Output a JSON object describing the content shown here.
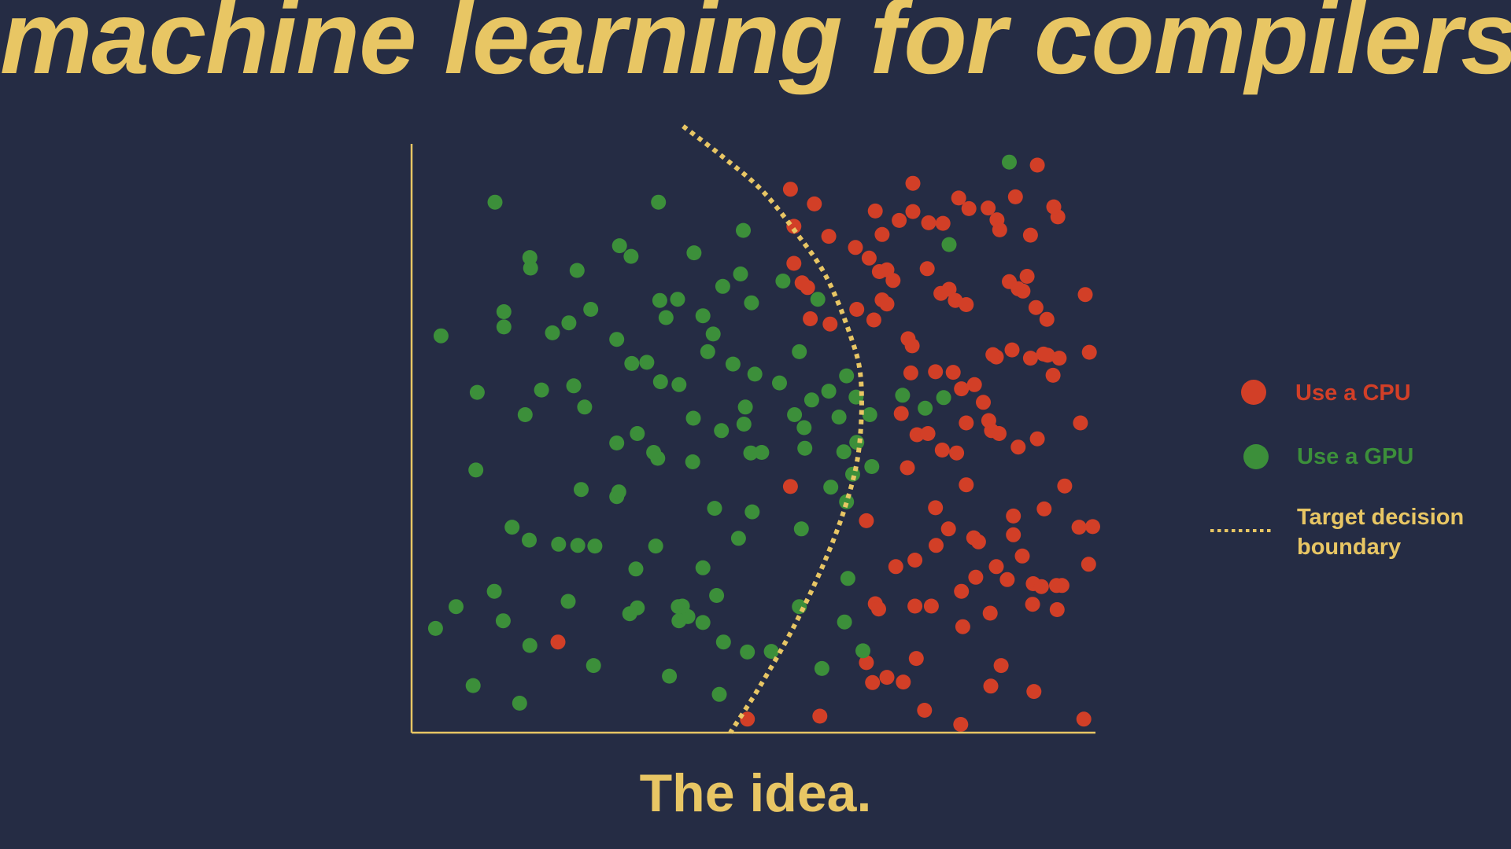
{
  "slide": {
    "title": "machine learning for compilers",
    "caption": "The idea."
  },
  "colors": {
    "background": "#252c44",
    "accent": "#e8c664",
    "cpu": "#d23f27",
    "gpu": "#3c8f3a",
    "axis": "#e8c664"
  },
  "chart_data": {
    "type": "scatter",
    "title": "",
    "xlabel": "",
    "ylabel": "",
    "xlim": [
      0,
      100
    ],
    "ylim": [
      0,
      100
    ],
    "grid": false,
    "legend_placement": "right",
    "series": [
      {
        "name": "Use a CPU",
        "color": "#d23f27",
        "points": [
          [
            55.4,
            92.3
          ],
          [
            58.9,
            89.8
          ],
          [
            73.3,
            93.3
          ],
          [
            91.5,
            96.4
          ],
          [
            88.3,
            91.0
          ],
          [
            94.5,
            87.6
          ],
          [
            55.9,
            86.0
          ],
          [
            61.0,
            84.3
          ],
          [
            64.9,
            82.4
          ],
          [
            67.8,
            88.6
          ],
          [
            68.8,
            84.6
          ],
          [
            71.3,
            87.0
          ],
          [
            73.3,
            88.5
          ],
          [
            75.6,
            86.6
          ],
          [
            77.7,
            86.5
          ],
          [
            80.0,
            90.8
          ],
          [
            81.5,
            89.0
          ],
          [
            84.3,
            89.1
          ],
          [
            85.6,
            87.1
          ],
          [
            86.0,
            85.4
          ],
          [
            90.5,
            84.5
          ],
          [
            55.9,
            79.7
          ],
          [
            57.1,
            76.4
          ],
          [
            57.9,
            75.6
          ],
          [
            66.9,
            80.6
          ],
          [
            68.4,
            78.3
          ],
          [
            69.5,
            78.6
          ],
          [
            70.4,
            76.8
          ],
          [
            75.4,
            78.8
          ],
          [
            77.4,
            74.6
          ],
          [
            78.6,
            75.3
          ],
          [
            79.5,
            73.4
          ],
          [
            81.1,
            72.7
          ],
          [
            87.4,
            76.6
          ],
          [
            88.7,
            75.4
          ],
          [
            89.4,
            75.0
          ],
          [
            90.0,
            77.5
          ],
          [
            91.3,
            72.2
          ],
          [
            92.9,
            70.2
          ],
          [
            98.5,
            74.4
          ],
          [
            93.9,
            89.3
          ],
          [
            58.3,
            70.3
          ],
          [
            61.2,
            69.4
          ],
          [
            65.1,
            71.9
          ],
          [
            67.6,
            70.1
          ],
          [
            68.8,
            73.5
          ],
          [
            69.5,
            72.8
          ],
          [
            72.6,
            66.9
          ],
          [
            73.2,
            65.7
          ],
          [
            73.0,
            61.1
          ],
          [
            76.6,
            61.3
          ],
          [
            79.2,
            61.2
          ],
          [
            80.4,
            58.4
          ],
          [
            82.3,
            59.1
          ],
          [
            85.5,
            63.8
          ],
          [
            85.0,
            64.2
          ],
          [
            87.8,
            65.0
          ],
          [
            90.5,
            63.6
          ],
          [
            92.4,
            64.3
          ],
          [
            93.0,
            64.1
          ],
          [
            93.8,
            60.7
          ],
          [
            94.7,
            63.6
          ],
          [
            99.1,
            64.6
          ],
          [
            83.6,
            56.1
          ],
          [
            84.4,
            53.0
          ],
          [
            84.8,
            51.3
          ],
          [
            71.6,
            54.2
          ],
          [
            73.9,
            50.6
          ],
          [
            75.5,
            50.8
          ],
          [
            77.6,
            48.0
          ],
          [
            79.7,
            47.5
          ],
          [
            81.1,
            52.6
          ],
          [
            85.9,
            50.8
          ],
          [
            88.7,
            48.5
          ],
          [
            91.5,
            49.9
          ],
          [
            97.8,
            52.6
          ],
          [
            72.5,
            45.0
          ],
          [
            76.6,
            38.2
          ],
          [
            88.0,
            36.8
          ],
          [
            95.5,
            41.9
          ],
          [
            66.5,
            36.0
          ],
          [
            78.5,
            34.6
          ],
          [
            81.1,
            42.1
          ],
          [
            73.6,
            29.3
          ],
          [
            76.7,
            31.8
          ],
          [
            88.0,
            33.6
          ],
          [
            92.5,
            38.0
          ],
          [
            97.6,
            34.9
          ],
          [
            99.6,
            35.0
          ],
          [
            99.0,
            28.6
          ],
          [
            82.5,
            26.4
          ],
          [
            82.2,
            33.1
          ],
          [
            82.9,
            32.4
          ],
          [
            85.5,
            28.2
          ],
          [
            87.1,
            26.0
          ],
          [
            89.3,
            30.0
          ],
          [
            90.9,
            25.3
          ],
          [
            95.1,
            25.0
          ],
          [
            92.1,
            24.8
          ],
          [
            94.3,
            25.0
          ],
          [
            90.8,
            21.8
          ],
          [
            94.4,
            20.9
          ],
          [
            67.8,
            21.9
          ],
          [
            68.3,
            21.0
          ],
          [
            73.6,
            21.5
          ],
          [
            76.0,
            21.5
          ],
          [
            80.6,
            18.0
          ],
          [
            84.6,
            20.3
          ],
          [
            80.4,
            24.0
          ],
          [
            70.8,
            28.2
          ],
          [
            69.5,
            9.4
          ],
          [
            71.9,
            8.6
          ],
          [
            66.5,
            11.9
          ],
          [
            67.4,
            8.5
          ],
          [
            73.8,
            12.6
          ],
          [
            75.0,
            3.8
          ],
          [
            80.3,
            1.4
          ],
          [
            84.7,
            7.9
          ],
          [
            86.2,
            11.4
          ],
          [
            91.0,
            7.0
          ],
          [
            98.3,
            2.3
          ],
          [
            59.7,
            2.8
          ],
          [
            49.1,
            2.3
          ],
          [
            21.4,
            15.4
          ],
          [
            55.4,
            41.8
          ]
        ]
      },
      {
        "name": "Use a GPU",
        "color": "#3c8f3a",
        "points": [
          [
            12.2,
            90.1
          ],
          [
            36.1,
            90.1
          ],
          [
            48.5,
            85.3
          ],
          [
            17.3,
            80.7
          ],
          [
            17.4,
            78.9
          ],
          [
            24.2,
            78.5
          ],
          [
            30.4,
            82.7
          ],
          [
            32.1,
            80.9
          ],
          [
            41.3,
            81.5
          ],
          [
            48.1,
            77.9
          ],
          [
            45.5,
            75.8
          ],
          [
            54.3,
            76.7
          ],
          [
            59.4,
            73.6
          ],
          [
            49.7,
            73.0
          ],
          [
            36.3,
            73.4
          ],
          [
            38.9,
            73.6
          ],
          [
            13.5,
            71.5
          ],
          [
            26.2,
            71.9
          ],
          [
            13.5,
            68.9
          ],
          [
            20.6,
            67.9
          ],
          [
            23.0,
            69.6
          ],
          [
            37.2,
            70.5
          ],
          [
            42.6,
            70.8
          ],
          [
            44.1,
            67.7
          ],
          [
            4.3,
            67.4
          ],
          [
            30.0,
            66.8
          ],
          [
            32.2,
            62.7
          ],
          [
            34.4,
            62.9
          ],
          [
            43.3,
            64.7
          ],
          [
            47.0,
            62.6
          ],
          [
            50.2,
            60.9
          ],
          [
            56.7,
            64.7
          ],
          [
            36.4,
            59.6
          ],
          [
            39.1,
            59.1
          ],
          [
            53.8,
            59.4
          ],
          [
            48.8,
            55.3
          ],
          [
            63.6,
            60.6
          ],
          [
            9.6,
            57.8
          ],
          [
            19.0,
            58.2
          ],
          [
            23.7,
            58.9
          ],
          [
            25.3,
            55.3
          ],
          [
            16.6,
            54.0
          ],
          [
            44.3,
            38.1
          ],
          [
            58.5,
            56.5
          ],
          [
            62.5,
            53.6
          ],
          [
            49.6,
            47.5
          ],
          [
            51.2,
            47.6
          ],
          [
            63.2,
            47.7
          ],
          [
            56.0,
            54.0
          ],
          [
            61.0,
            58.0
          ],
          [
            65.0,
            57.0
          ],
          [
            67.0,
            54.0
          ],
          [
            41.1,
            46.0
          ],
          [
            36.0,
            46.6
          ],
          [
            35.4,
            47.6
          ],
          [
            41.2,
            53.4
          ],
          [
            45.3,
            51.3
          ],
          [
            48.6,
            52.4
          ],
          [
            30.0,
            49.2
          ],
          [
            57.4,
            51.8
          ],
          [
            65.1,
            49.3
          ],
          [
            57.5,
            48.3
          ],
          [
            71.8,
            57.3
          ],
          [
            75.1,
            55.1
          ],
          [
            77.8,
            56.9
          ],
          [
            87.4,
            96.9
          ],
          [
            78.6,
            82.9
          ],
          [
            64.5,
            43.9
          ],
          [
            67.3,
            45.2
          ],
          [
            61.3,
            41.7
          ],
          [
            63.6,
            39.2
          ],
          [
            9.4,
            44.6
          ],
          [
            30.0,
            40.1
          ],
          [
            49.8,
            37.5
          ],
          [
            47.8,
            33.0
          ],
          [
            57.0,
            34.6
          ],
          [
            14.7,
            34.9
          ],
          [
            17.2,
            32.7
          ],
          [
            21.5,
            32.0
          ],
          [
            26.8,
            31.7
          ],
          [
            35.7,
            31.7
          ],
          [
            32.8,
            27.8
          ],
          [
            42.6,
            28.0
          ],
          [
            63.8,
            26.2
          ],
          [
            12.1,
            24.0
          ],
          [
            6.5,
            21.4
          ],
          [
            13.4,
            19.0
          ],
          [
            22.9,
            22.3
          ],
          [
            39.0,
            21.4
          ],
          [
            40.4,
            19.7
          ],
          [
            42.6,
            18.7
          ],
          [
            56.7,
            21.4
          ],
          [
            39.1,
            19.0
          ],
          [
            33.0,
            21.2
          ],
          [
            3.5,
            17.7
          ],
          [
            17.3,
            14.8
          ],
          [
            44.6,
            23.3
          ],
          [
            39.6,
            21.5
          ],
          [
            63.3,
            18.8
          ],
          [
            26.6,
            11.4
          ],
          [
            45.6,
            15.4
          ],
          [
            49.1,
            13.7
          ],
          [
            52.6,
            13.8
          ],
          [
            60.0,
            10.9
          ],
          [
            66.0,
            13.9
          ],
          [
            9.0,
            8.0
          ],
          [
            15.8,
            5.0
          ],
          [
            37.7,
            9.6
          ],
          [
            45.0,
            6.5
          ],
          [
            33.0,
            50.8
          ],
          [
            30.3,
            40.9
          ],
          [
            24.8,
            41.3
          ],
          [
            31.9,
            20.2
          ],
          [
            24.3,
            31.8
          ]
        ]
      }
    ],
    "decision_boundary": {
      "name": "Target decision boundary",
      "style": "dotted",
      "color": "#e8c664",
      "points": [
        [
          39.7,
          103.0
        ],
        [
          45.5,
          97.8
        ],
        [
          51.3,
          92.0
        ],
        [
          56.5,
          84.5
        ],
        [
          60.6,
          77.5
        ],
        [
          64.0,
          68.0
        ],
        [
          65.7,
          60.0
        ],
        [
          65.4,
          48.0
        ],
        [
          63.3,
          38.0
        ],
        [
          60.0,
          28.0
        ],
        [
          55.8,
          17.8
        ],
        [
          51.0,
          8.0
        ],
        [
          46.6,
          0.0
        ]
      ]
    }
  },
  "legend": {
    "items": [
      {
        "label": "Use a CPU",
        "marker": "circle",
        "color": "#d23f27"
      },
      {
        "label": "Use a GPU",
        "marker": "circle",
        "color": "#3c8f3a"
      },
      {
        "label": "Target decision boundary",
        "marker": "dotted-line",
        "color": "#e8c664",
        "lines": [
          "Target decision",
          "boundary"
        ]
      }
    ]
  }
}
